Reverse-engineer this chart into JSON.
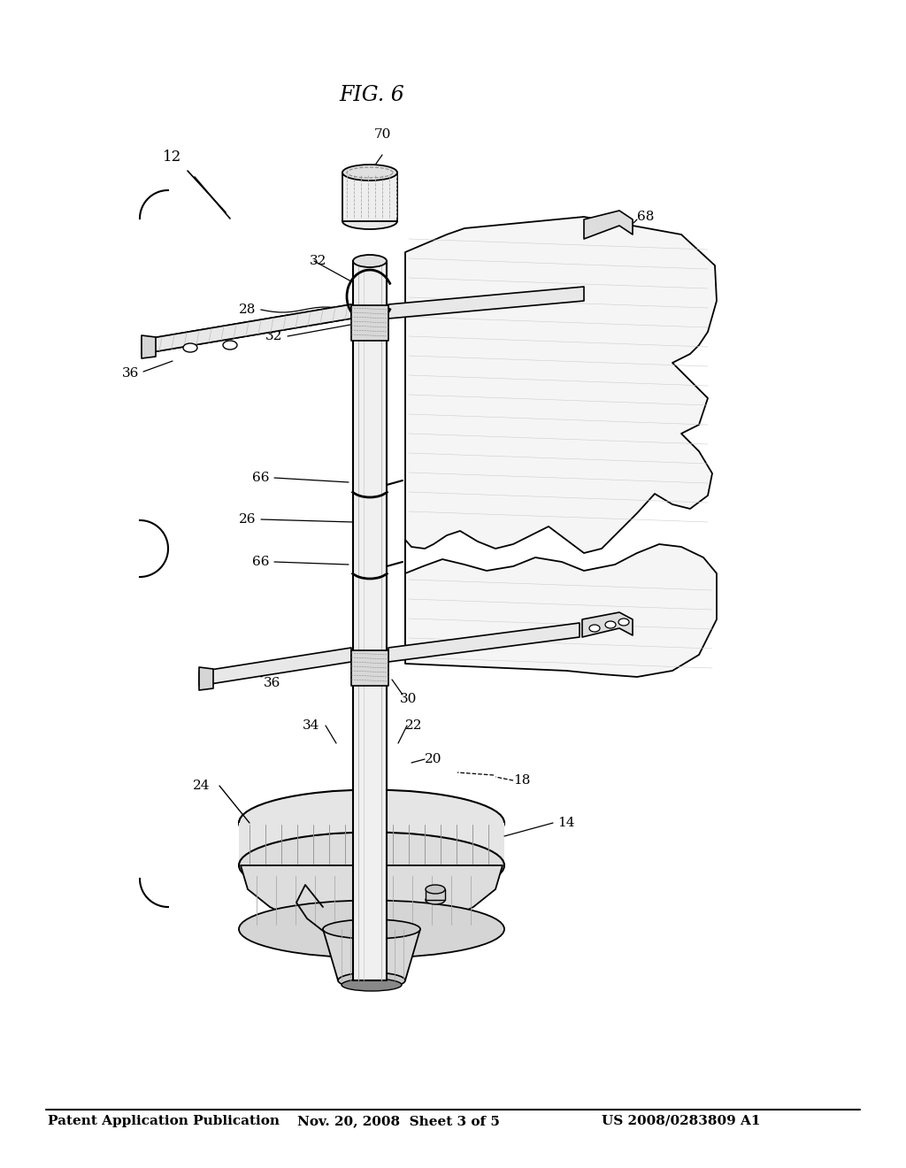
{
  "bg_color": "#ffffff",
  "header_left": "Patent Application Publication",
  "header_mid": "Nov. 20, 2008  Sheet 3 of 5",
  "header_right": "US 2008/0283809 A1",
  "fig_label": "FIG. 6"
}
